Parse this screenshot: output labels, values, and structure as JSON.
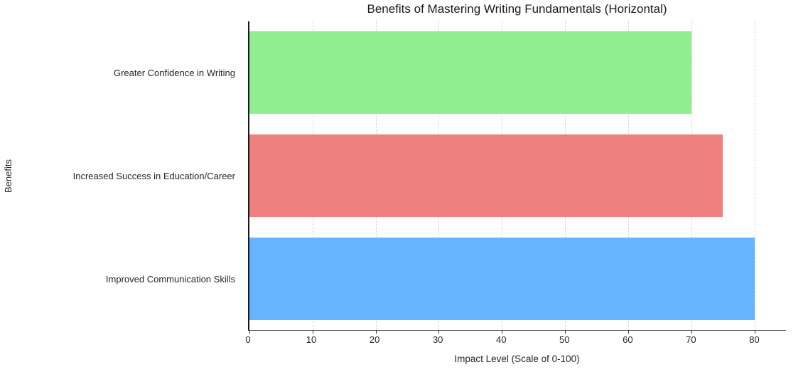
{
  "chart_data": {
    "type": "bar",
    "orientation": "horizontal",
    "title": "Benefits of Mastering Writing Fundamentals (Horizontal)",
    "xlabel": "Impact Level (Scale of 0-100)",
    "ylabel": "Benefits",
    "categories": [
      "Greater Confidence in Writing",
      "Increased Success in Education/Career",
      "Improved Communication Skills"
    ],
    "values": [
      70,
      75,
      80
    ],
    "colors": [
      "#90EE90",
      "#F08080",
      "#66B3FF"
    ],
    "xlim": [
      0,
      85
    ],
    "xticks": [
      0,
      10,
      20,
      30,
      40,
      50,
      60,
      70,
      80
    ],
    "grid": "dotted-vertical",
    "legend": "none",
    "background": "#ffffff"
  }
}
